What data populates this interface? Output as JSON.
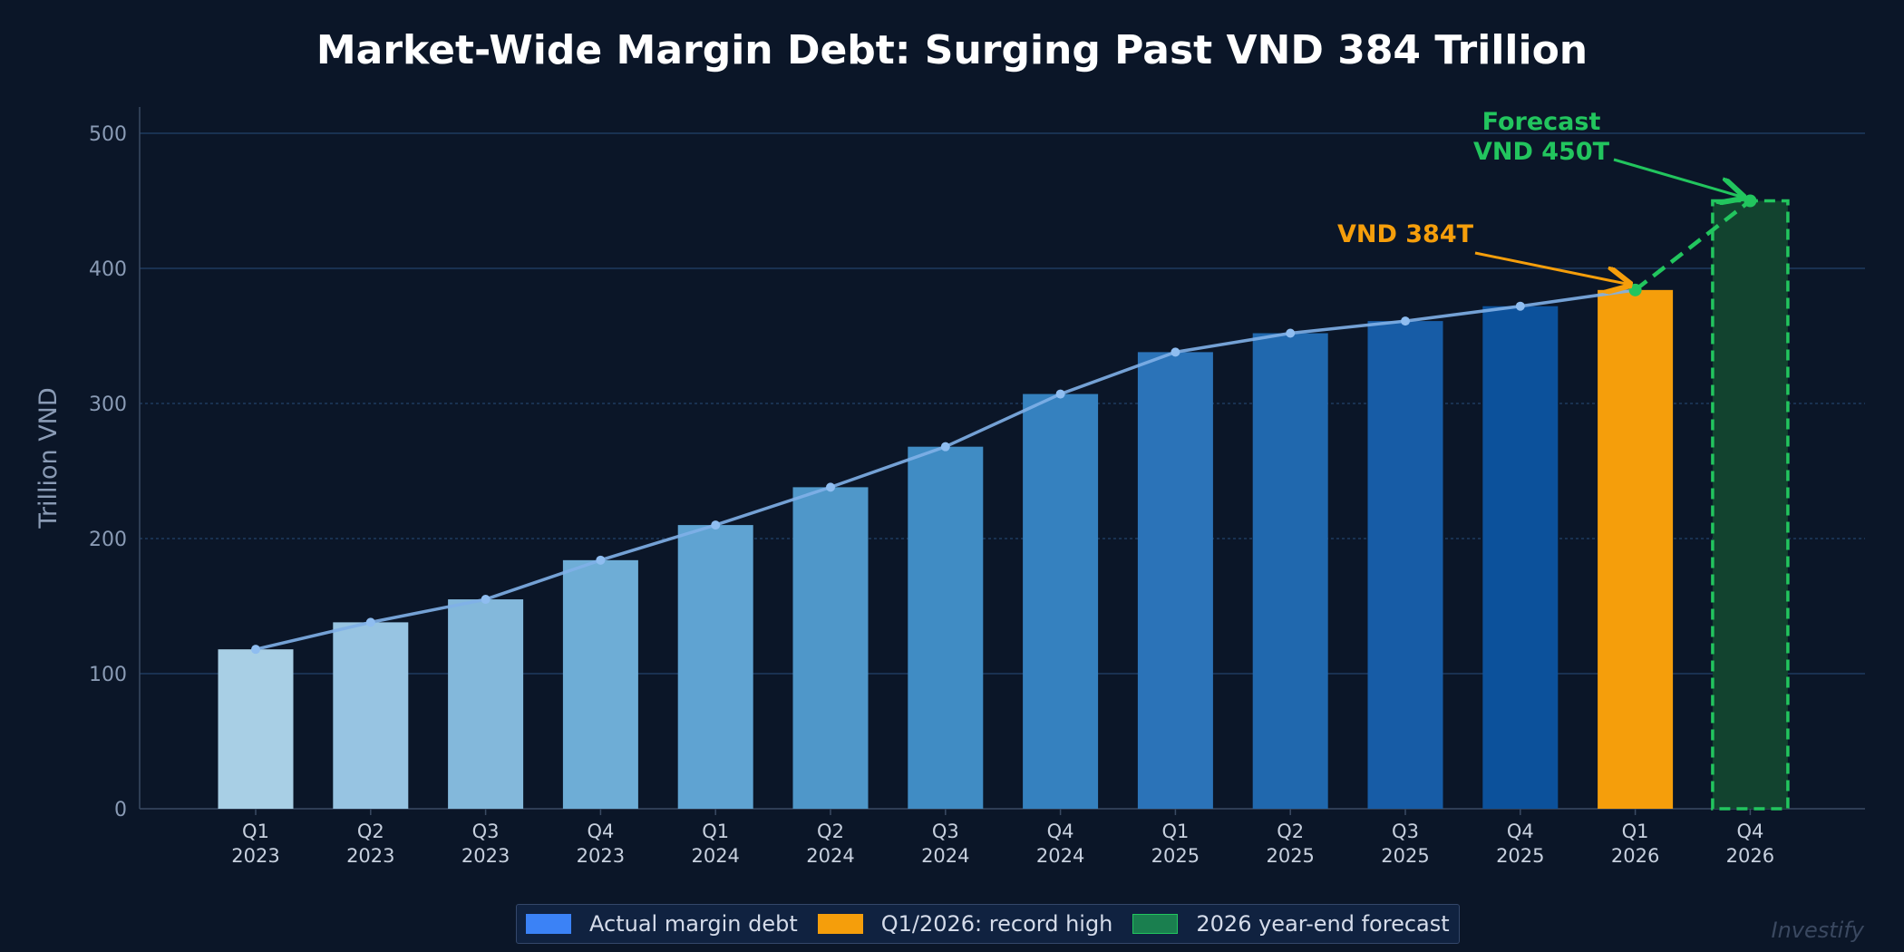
{
  "chart_data": {
    "type": "bar",
    "title": "Market-Wide Margin Debt: Surging Past VND 384 Trillion",
    "ylabel": "Trillion VND",
    "xlabel": "",
    "ylim": [
      0,
      520
    ],
    "yticks": [
      0,
      100,
      200,
      300,
      400,
      500
    ],
    "grid": true,
    "categories": [
      [
        "Q1",
        "2023"
      ],
      [
        "Q2",
        "2023"
      ],
      [
        "Q3",
        "2023"
      ],
      [
        "Q4",
        "2023"
      ],
      [
        "Q1",
        "2024"
      ],
      [
        "Q2",
        "2024"
      ],
      [
        "Q3",
        "2024"
      ],
      [
        "Q4",
        "2024"
      ],
      [
        "Q1",
        "2025"
      ],
      [
        "Q2",
        "2025"
      ],
      [
        "Q3",
        "2025"
      ],
      [
        "Q4",
        "2025"
      ],
      [
        "Q1",
        "2026"
      ],
      [
        "Q4",
        "2026"
      ]
    ],
    "values": [
      118,
      138,
      155,
      184,
      210,
      238,
      268,
      307,
      338,
      352,
      361,
      372,
      384,
      450
    ],
    "bar_colors": [
      "#a8cfe5",
      "#97c4e2",
      "#83b8db",
      "#6eadd6",
      "#5fa3d2",
      "#4f97c9",
      "#408cc4",
      "#3581bf",
      "#2b73b8",
      "#2068ae",
      "#175ca6",
      "#0c519b",
      "#f59e0b",
      "#12432f"
    ],
    "forecast_index": 13,
    "line_color": "#7fb0e8",
    "forecast_color": "#22c55e",
    "annotations": [
      {
        "text": "VND 384T",
        "color": "#f59e0b",
        "target_index": 12
      },
      {
        "text_lines": [
          "Forecast",
          "VND 450T"
        ],
        "color": "#22c55e",
        "target_index": 13
      }
    ],
    "legend": {
      "placement": "bottom-center",
      "items": [
        {
          "label": "Actual margin debt",
          "color": "#3b82f6"
        },
        {
          "label": "Q1/2026: record high",
          "color": "#f59e0b"
        },
        {
          "label": "2026 year-end forecast",
          "color": "#1a7f4f"
        }
      ]
    }
  },
  "watermark": "Investify"
}
